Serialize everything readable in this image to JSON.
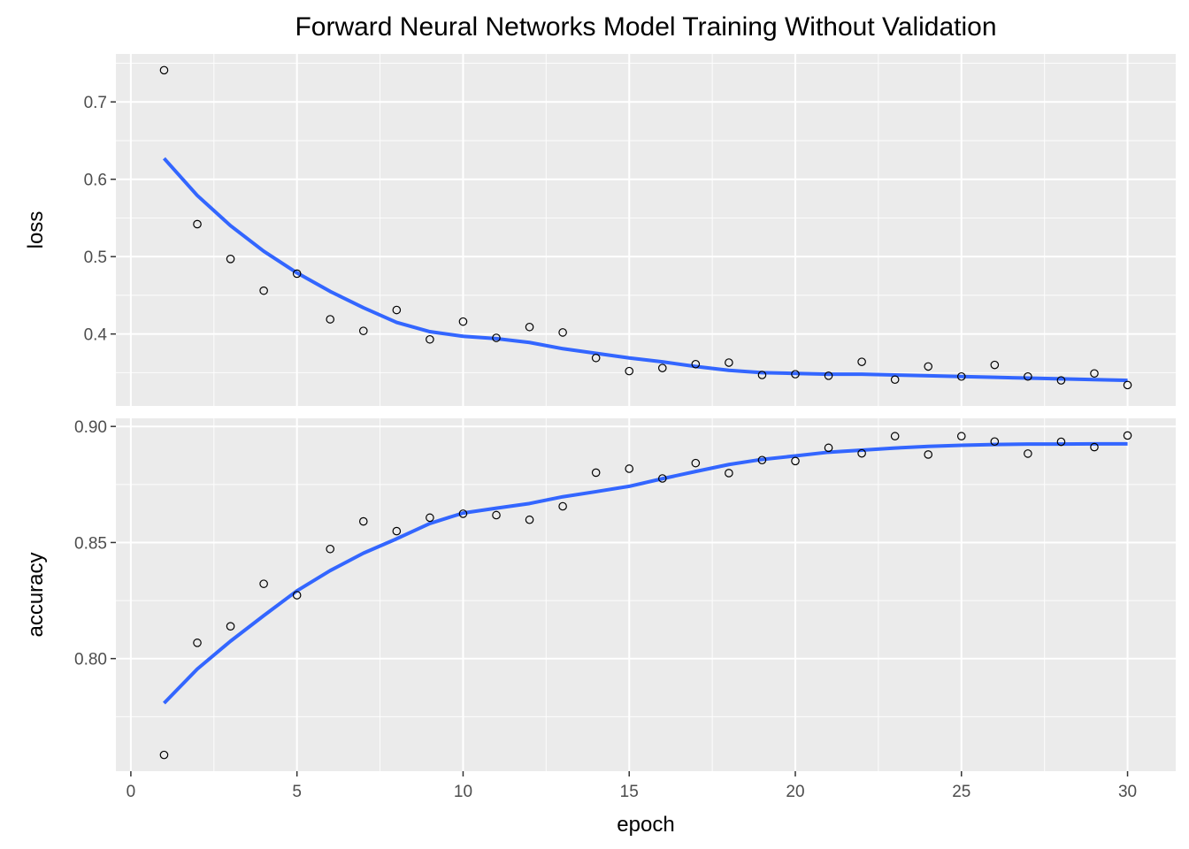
{
  "chart_data": {
    "type": "scatter",
    "title": "Forward Neural Networks Model Training Without Validation",
    "xlabel": "epoch",
    "x": [
      1,
      2,
      3,
      4,
      5,
      6,
      7,
      8,
      9,
      10,
      11,
      12,
      13,
      14,
      15,
      16,
      17,
      18,
      19,
      20,
      21,
      22,
      23,
      24,
      25,
      26,
      27,
      28,
      29,
      30
    ],
    "xlim": [
      -0.45,
      31.45
    ],
    "x_ticks": [
      "0",
      "5",
      "10",
      "15",
      "20",
      "25",
      "30"
    ],
    "grid": true,
    "smooth_color": "#3366FF",
    "panel_background": "#EBEBEB",
    "facets": [
      {
        "name": "loss",
        "ylabel": "loss",
        "ylim": [
          0.307,
          0.762
        ],
        "y_ticks": [
          "0.4",
          "0.5",
          "0.6",
          "0.7"
        ],
        "values": [
          0.741,
          0.542,
          0.497,
          0.456,
          0.478,
          0.419,
          0.404,
          0.431,
          0.393,
          0.416,
          0.395,
          0.409,
          0.402,
          0.369,
          0.352,
          0.356,
          0.361,
          0.363,
          0.347,
          0.348,
          0.346,
          0.364,
          0.341,
          0.358,
          0.345,
          0.36,
          0.345,
          0.34,
          0.349,
          0.334
        ],
        "smooth": [
          0.627,
          0.579,
          0.54,
          0.507,
          0.479,
          0.455,
          0.434,
          0.415,
          0.403,
          0.397,
          0.394,
          0.389,
          0.381,
          0.375,
          0.369,
          0.364,
          0.358,
          0.353,
          0.35,
          0.349,
          0.348,
          0.348,
          0.347,
          0.346,
          0.345,
          0.344,
          0.343,
          0.342,
          0.341,
          0.34
        ]
      },
      {
        "name": "accuracy",
        "ylabel": "accuracy",
        "ylim": [
          0.7515,
          0.9035
        ],
        "y_ticks": [
          "0.80",
          "0.85",
          "0.90"
        ],
        "values": [
          0.7585,
          0.8068,
          0.8139,
          0.8322,
          0.8273,
          0.8472,
          0.8591,
          0.8549,
          0.8607,
          0.8624,
          0.8618,
          0.8598,
          0.8656,
          0.8801,
          0.8818,
          0.8776,
          0.8842,
          0.8799,
          0.8855,
          0.8851,
          0.8908,
          0.8884,
          0.8958,
          0.8879,
          0.8958,
          0.8935,
          0.8883,
          0.8934,
          0.8911,
          0.8961
        ],
        "smooth": [
          0.7808,
          0.7955,
          0.8075,
          0.8185,
          0.8292,
          0.8379,
          0.8454,
          0.8516,
          0.8582,
          0.8627,
          0.8648,
          0.8668,
          0.8697,
          0.8719,
          0.8742,
          0.8775,
          0.8806,
          0.8836,
          0.8858,
          0.8873,
          0.8889,
          0.8898,
          0.8907,
          0.8914,
          0.8919,
          0.8922,
          0.8924,
          0.8924,
          0.8925,
          0.8925
        ]
      }
    ]
  }
}
